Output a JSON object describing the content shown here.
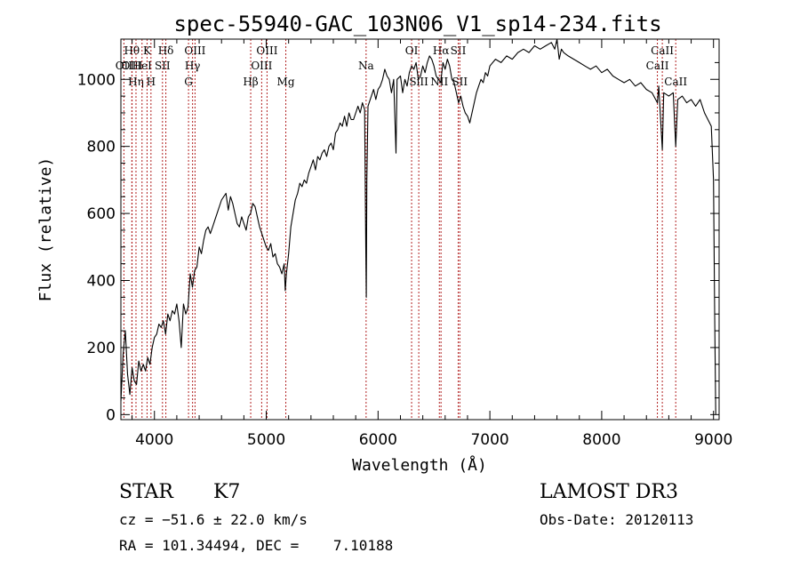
{
  "chart_data": {
    "type": "line",
    "title": "spec-55940-GAC_103N06_V1_sp14-234.fits",
    "xlabel": "Wavelength (Å)",
    "ylabel": "Flux (relative)",
    "xlim": [
      3700,
      9050
    ],
    "ylim": [
      -15,
      1120
    ],
    "xticks": [
      4000,
      5000,
      6000,
      7000,
      8000,
      9000
    ],
    "yticks": [
      0,
      200,
      400,
      600,
      800,
      1000
    ],
    "grid": false,
    "series": [
      {
        "name": "flux",
        "points": [
          [
            3700,
            40
          ],
          [
            3720,
            180
          ],
          [
            3740,
            250
          ],
          [
            3760,
            120
          ],
          [
            3780,
            60
          ],
          [
            3800,
            140
          ],
          [
            3820,
            100
          ],
          [
            3840,
            90
          ],
          [
            3860,
            160
          ],
          [
            3880,
            130
          ],
          [
            3900,
            150
          ],
          [
            3920,
            130
          ],
          [
            3940,
            170
          ],
          [
            3960,
            150
          ],
          [
            3980,
            200
          ],
          [
            4000,
            230
          ],
          [
            4020,
            240
          ],
          [
            4040,
            270
          ],
          [
            4060,
            260
          ],
          [
            4080,
            280
          ],
          [
            4100,
            240
          ],
          [
            4120,
            300
          ],
          [
            4140,
            280
          ],
          [
            4160,
            310
          ],
          [
            4180,
            300
          ],
          [
            4200,
            330
          ],
          [
            4220,
            280
          ],
          [
            4240,
            200
          ],
          [
            4260,
            330
          ],
          [
            4280,
            300
          ],
          [
            4300,
            320
          ],
          [
            4320,
            420
          ],
          [
            4340,
            380
          ],
          [
            4360,
            430
          ],
          [
            4380,
            440
          ],
          [
            4400,
            500
          ],
          [
            4420,
            480
          ],
          [
            4440,
            520
          ],
          [
            4460,
            550
          ],
          [
            4480,
            560
          ],
          [
            4500,
            540
          ],
          [
            4520,
            560
          ],
          [
            4540,
            580
          ],
          [
            4560,
            600
          ],
          [
            4580,
            620
          ],
          [
            4600,
            640
          ],
          [
            4620,
            650
          ],
          [
            4640,
            660
          ],
          [
            4660,
            610
          ],
          [
            4680,
            650
          ],
          [
            4700,
            630
          ],
          [
            4720,
            600
          ],
          [
            4740,
            570
          ],
          [
            4760,
            560
          ],
          [
            4780,
            590
          ],
          [
            4800,
            570
          ],
          [
            4820,
            550
          ],
          [
            4840,
            590
          ],
          [
            4860,
            600
          ],
          [
            4880,
            630
          ],
          [
            4900,
            620
          ],
          [
            4920,
            590
          ],
          [
            4940,
            560
          ],
          [
            4960,
            540
          ],
          [
            4980,
            520
          ],
          [
            5000,
            500
          ],
          [
            5020,
            490
          ],
          [
            5040,
            510
          ],
          [
            5060,
            470
          ],
          [
            5080,
            480
          ],
          [
            5100,
            450
          ],
          [
            5120,
            440
          ],
          [
            5140,
            420
          ],
          [
            5160,
            450
          ],
          [
            5170,
            370
          ],
          [
            5180,
            420
          ],
          [
            5200,
            480
          ],
          [
            5220,
            560
          ],
          [
            5240,
            600
          ],
          [
            5260,
            640
          ],
          [
            5280,
            660
          ],
          [
            5300,
            690
          ],
          [
            5320,
            680
          ],
          [
            5340,
            700
          ],
          [
            5360,
            690
          ],
          [
            5380,
            720
          ],
          [
            5400,
            740
          ],
          [
            5420,
            760
          ],
          [
            5440,
            730
          ],
          [
            5460,
            770
          ],
          [
            5480,
            760
          ],
          [
            5500,
            780
          ],
          [
            5520,
            790
          ],
          [
            5540,
            770
          ],
          [
            5560,
            800
          ],
          [
            5580,
            810
          ],
          [
            5600,
            790
          ],
          [
            5620,
            840
          ],
          [
            5640,
            850
          ],
          [
            5660,
            870
          ],
          [
            5680,
            860
          ],
          [
            5700,
            890
          ],
          [
            5720,
            860
          ],
          [
            5740,
            900
          ],
          [
            5760,
            880
          ],
          [
            5780,
            880
          ],
          [
            5800,
            900
          ],
          [
            5820,
            920
          ],
          [
            5840,
            900
          ],
          [
            5860,
            930
          ],
          [
            5880,
            910
          ],
          [
            5890,
            500
          ],
          [
            5895,
            350
          ],
          [
            5900,
            700
          ],
          [
            5910,
            920
          ],
          [
            5940,
            950
          ],
          [
            5960,
            970
          ],
          [
            5980,
            940
          ],
          [
            6000,
            970
          ],
          [
            6020,
            980
          ],
          [
            6040,
            1000
          ],
          [
            6060,
            1030
          ],
          [
            6080,
            1010
          ],
          [
            6100,
            1000
          ],
          [
            6120,
            960
          ],
          [
            6140,
            1000
          ],
          [
            6160,
            780
          ],
          [
            6170,
            1000
          ],
          [
            6200,
            1010
          ],
          [
            6220,
            960
          ],
          [
            6240,
            1000
          ],
          [
            6260,
            980
          ],
          [
            6280,
            1020
          ],
          [
            6300,
            1040
          ],
          [
            6320,
            1030
          ],
          [
            6340,
            1050
          ],
          [
            6360,
            1000
          ],
          [
            6380,
            1010
          ],
          [
            6400,
            1040
          ],
          [
            6420,
            1020
          ],
          [
            6440,
            1050
          ],
          [
            6460,
            1070
          ],
          [
            6480,
            1060
          ],
          [
            6500,
            1040
          ],
          [
            6520,
            1010
          ],
          [
            6540,
            1000
          ],
          [
            6560,
            990
          ],
          [
            6580,
            1050
          ],
          [
            6600,
            1030
          ],
          [
            6620,
            1060
          ],
          [
            6640,
            1040
          ],
          [
            6660,
            1000
          ],
          [
            6680,
            990
          ],
          [
            6700,
            960
          ],
          [
            6720,
            930
          ],
          [
            6740,
            950
          ],
          [
            6760,
            920
          ],
          [
            6780,
            900
          ],
          [
            6800,
            890
          ],
          [
            6820,
            870
          ],
          [
            6840,
            900
          ],
          [
            6860,
            930
          ],
          [
            6880,
            960
          ],
          [
            6900,
            980
          ],
          [
            6920,
            1000
          ],
          [
            6940,
            990
          ],
          [
            6960,
            1020
          ],
          [
            6980,
            1010
          ],
          [
            7000,
            1040
          ],
          [
            7050,
            1060
          ],
          [
            7100,
            1050
          ],
          [
            7150,
            1070
          ],
          [
            7200,
            1060
          ],
          [
            7250,
            1080
          ],
          [
            7300,
            1090
          ],
          [
            7350,
            1080
          ],
          [
            7400,
            1100
          ],
          [
            7450,
            1090
          ],
          [
            7500,
            1100
          ],
          [
            7550,
            1110
          ],
          [
            7580,
            1090
          ],
          [
            7600,
            1130
          ],
          [
            7620,
            1060
          ],
          [
            7640,
            1090
          ],
          [
            7660,
            1080
          ],
          [
            7700,
            1070
          ],
          [
            7750,
            1060
          ],
          [
            7800,
            1050
          ],
          [
            7850,
            1040
          ],
          [
            7900,
            1030
          ],
          [
            7950,
            1040
          ],
          [
            8000,
            1020
          ],
          [
            8050,
            1030
          ],
          [
            8100,
            1010
          ],
          [
            8150,
            1000
          ],
          [
            8200,
            990
          ],
          [
            8250,
            1000
          ],
          [
            8300,
            980
          ],
          [
            8350,
            990
          ],
          [
            8400,
            970
          ],
          [
            8450,
            960
          ],
          [
            8498,
            930
          ],
          [
            8510,
            980
          ],
          [
            8542,
            790
          ],
          [
            8555,
            960
          ],
          [
            8600,
            950
          ],
          [
            8640,
            960
          ],
          [
            8662,
            800
          ],
          [
            8680,
            940
          ],
          [
            8720,
            950
          ],
          [
            8760,
            930
          ],
          [
            8800,
            940
          ],
          [
            8840,
            920
          ],
          [
            8880,
            940
          ],
          [
            8920,
            900
          ],
          [
            8950,
            880
          ],
          [
            8980,
            860
          ],
          [
            9000,
            700
          ],
          [
            9010,
            300
          ],
          [
            9020,
            0
          ]
        ]
      }
    ],
    "lines": [
      {
        "name": "OII",
        "wave": 3727,
        "row": 2
      },
      {
        "name": "Hθ",
        "wave": 3798,
        "row": 1
      },
      {
        "name": "OIII",
        "wave": 3800,
        "row": 2
      },
      {
        "name": "Hη",
        "wave": 3835,
        "row": 3
      },
      {
        "name": "K",
        "wave": 3934,
        "row": 1
      },
      {
        "name": "HeI",
        "wave": 3889,
        "row": 2
      },
      {
        "name": "H",
        "wave": 3969,
        "row": 3
      },
      {
        "name": "Hδ",
        "wave": 4102,
        "row": 1
      },
      {
        "name": "SII",
        "wave": 4072,
        "row": 2
      },
      {
        "name": "OIII",
        "wave": 4363,
        "row": 1
      },
      {
        "name": "Hγ",
        "wave": 4341,
        "row": 2
      },
      {
        "name": "G",
        "wave": 4305,
        "row": 3
      },
      {
        "name": "OIII",
        "wave": 5007,
        "row": 1
      },
      {
        "name": "OIII",
        "wave": 4959,
        "row": 2
      },
      {
        "name": "Hβ",
        "wave": 4861,
        "row": 3
      },
      {
        "name": "Mg",
        "wave": 5175,
        "row": 3
      },
      {
        "name": "Na",
        "wave": 5893,
        "row": 2
      },
      {
        "name": "OI",
        "wave": 6300,
        "row": 1
      },
      {
        "name": "SiII",
        "wave": 6364,
        "row": 3
      },
      {
        "name": "Hα",
        "wave": 6563,
        "row": 1
      },
      {
        "name": "SII",
        "wave": 6717,
        "row": 1
      },
      {
        "name": "NII",
        "wave": 6548,
        "row": 3
      },
      {
        "name": "SII",
        "wave": 6731,
        "row": 3
      },
      {
        "name": "CaII",
        "wave": 8542,
        "row": 1
      },
      {
        "name": "CaII",
        "wave": 8498,
        "row": 2
      },
      {
        "name": "CaII",
        "wave": 8662,
        "row": 3
      }
    ],
    "annotations": {
      "class": "STAR",
      "subclass": "K7",
      "redshift": "cz = −51.6 ± 22.0 km/s",
      "coords": "RA = 101.34494, DEC =    7.10188",
      "survey": "LAMOST DR3",
      "obs_date": "Obs-Date: 20120113"
    },
    "colors": {
      "spectrum": "#000000",
      "lines": "#b22222",
      "axis": "#000000"
    }
  }
}
